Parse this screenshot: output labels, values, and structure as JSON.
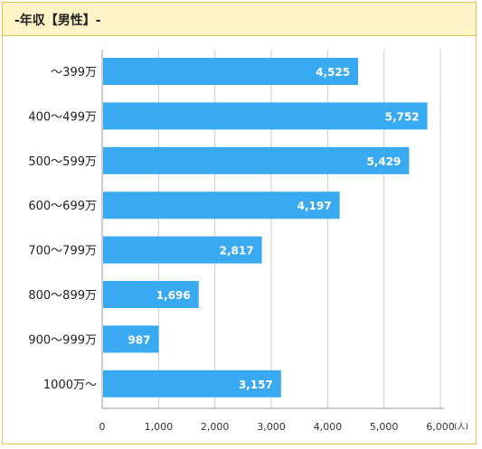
{
  "header": {
    "title": "-年収【男性】-"
  },
  "colors": {
    "bar": "#39aaf1",
    "header_bg": "#fff3c7",
    "border": "#e7c24f",
    "grid": "#cccccc"
  },
  "chart_data": {
    "type": "bar",
    "orientation": "horizontal",
    "categories": [
      "～399万",
      "400～499万",
      "500～599万",
      "600～699万",
      "700～799万",
      "800～899万",
      "900～999万",
      "1000万～"
    ],
    "values": [
      4525,
      5752,
      5429,
      4197,
      2817,
      1696,
      987,
      3157
    ],
    "value_labels": [
      "4,525",
      "5,752",
      "5,429",
      "4,197",
      "2,817",
      "1,696",
      "987",
      "3,157"
    ],
    "x_ticks": [
      "0",
      "1,000",
      "2,000",
      "3,000",
      "4,000",
      "5,000",
      "6,000"
    ],
    "x_unit": "(人)",
    "xlim": [
      0,
      6000
    ],
    "grid": true
  }
}
